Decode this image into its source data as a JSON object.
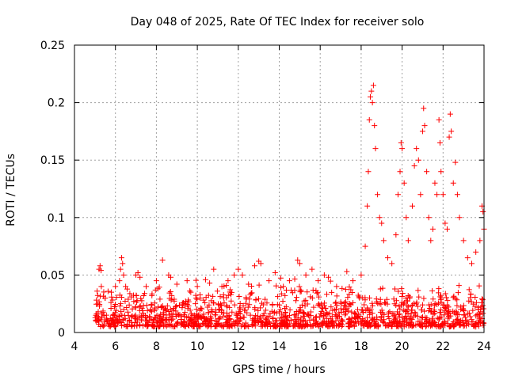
{
  "chart_data": {
    "type": "scatter",
    "title": "Day 048 of 2025, Rate Of TEC Index for receiver solo",
    "xlabel": "GPS time / hours",
    "ylabel": "ROTI / TECUs",
    "xlim": [
      4,
      24
    ],
    "ylim": [
      0,
      0.25
    ],
    "xticks": [
      4,
      6,
      8,
      10,
      12,
      14,
      16,
      18,
      20,
      22,
      24
    ],
    "xtick_labels": [
      "4",
      "6",
      "8",
      "10",
      "12",
      "14",
      "16",
      "18",
      "20",
      "22",
      "24"
    ],
    "yticks": [
      0,
      0.05,
      0.1,
      0.15,
      0.2,
      0.25
    ],
    "ytick_labels": [
      "0",
      "0.05",
      "0.1",
      "0.15",
      "0.2",
      "0.25"
    ],
    "grid": true,
    "marker": "+",
    "color": "#ff0000",
    "series": [
      {
        "name": "ROTI",
        "points": [
          [
            5.2,
            0.055
          ],
          [
            5.25,
            0.058
          ],
          [
            5.3,
            0.054
          ],
          [
            5.5,
            0.03
          ],
          [
            5.8,
            0.035
          ],
          [
            6.0,
            0.04
          ],
          [
            6.2,
            0.045
          ],
          [
            6.25,
            0.055
          ],
          [
            6.3,
            0.065
          ],
          [
            6.35,
            0.06
          ],
          [
            6.4,
            0.05
          ],
          [
            6.5,
            0.04
          ],
          [
            7.0,
            0.05
          ],
          [
            7.1,
            0.052
          ],
          [
            7.2,
            0.048
          ],
          [
            7.5,
            0.04
          ],
          [
            8.0,
            0.045
          ],
          [
            8.3,
            0.063
          ],
          [
            8.6,
            0.05
          ],
          [
            8.7,
            0.048
          ],
          [
            9.0,
            0.042
          ],
          [
            9.5,
            0.045
          ],
          [
            10.0,
            0.04
          ],
          [
            10.4,
            0.046
          ],
          [
            10.6,
            0.043
          ],
          [
            10.8,
            0.055
          ],
          [
            11.2,
            0.04
          ],
          [
            11.5,
            0.045
          ],
          [
            11.8,
            0.05
          ],
          [
            12.0,
            0.055
          ],
          [
            12.2,
            0.05
          ],
          [
            12.5,
            0.042
          ],
          [
            12.8,
            0.058
          ],
          [
            13.0,
            0.062
          ],
          [
            13.1,
            0.06
          ],
          [
            13.5,
            0.045
          ],
          [
            13.8,
            0.052
          ],
          [
            14.2,
            0.04
          ],
          [
            14.5,
            0.045
          ],
          [
            14.9,
            0.063
          ],
          [
            15.0,
            0.06
          ],
          [
            15.3,
            0.05
          ],
          [
            15.6,
            0.055
          ],
          [
            15.9,
            0.045
          ],
          [
            16.2,
            0.05
          ],
          [
            16.4,
            0.048
          ],
          [
            16.8,
            0.04
          ],
          [
            17.3,
            0.053
          ],
          [
            17.6,
            0.045
          ],
          [
            18.0,
            0.05
          ],
          [
            18.2,
            0.075
          ],
          [
            18.3,
            0.11
          ],
          [
            18.35,
            0.14
          ],
          [
            18.4,
            0.185
          ],
          [
            18.45,
            0.205
          ],
          [
            18.5,
            0.21
          ],
          [
            18.55,
            0.2
          ],
          [
            18.6,
            0.215
          ],
          [
            18.65,
            0.18
          ],
          [
            18.7,
            0.16
          ],
          [
            18.8,
            0.12
          ],
          [
            18.9,
            0.1
          ],
          [
            19.0,
            0.095
          ],
          [
            19.1,
            0.08
          ],
          [
            19.3,
            0.065
          ],
          [
            19.5,
            0.06
          ],
          [
            19.7,
            0.085
          ],
          [
            19.8,
            0.12
          ],
          [
            19.9,
            0.14
          ],
          [
            19.95,
            0.165
          ],
          [
            20.0,
            0.16
          ],
          [
            20.1,
            0.13
          ],
          [
            20.2,
            0.1
          ],
          [
            20.3,
            0.08
          ],
          [
            20.5,
            0.11
          ],
          [
            20.6,
            0.145
          ],
          [
            20.7,
            0.16
          ],
          [
            20.8,
            0.15
          ],
          [
            20.9,
            0.12
          ],
          [
            21.0,
            0.175
          ],
          [
            21.05,
            0.195
          ],
          [
            21.1,
            0.18
          ],
          [
            21.2,
            0.14
          ],
          [
            21.3,
            0.1
          ],
          [
            21.4,
            0.08
          ],
          [
            21.5,
            0.09
          ],
          [
            21.6,
            0.13
          ],
          [
            21.7,
            0.12
          ],
          [
            21.8,
            0.185
          ],
          [
            21.85,
            0.165
          ],
          [
            21.9,
            0.14
          ],
          [
            22.0,
            0.12
          ],
          [
            22.1,
            0.095
          ],
          [
            22.2,
            0.09
          ],
          [
            22.3,
            0.17
          ],
          [
            22.35,
            0.19
          ],
          [
            22.4,
            0.175
          ],
          [
            22.5,
            0.13
          ],
          [
            22.6,
            0.148
          ],
          [
            22.7,
            0.12
          ],
          [
            22.8,
            0.1
          ],
          [
            23.0,
            0.08
          ],
          [
            23.2,
            0.065
          ],
          [
            23.4,
            0.06
          ],
          [
            23.6,
            0.07
          ],
          [
            23.8,
            0.08
          ],
          [
            23.9,
            0.11
          ],
          [
            23.95,
            0.105
          ],
          [
            24.0,
            0.09
          ]
        ]
      }
    ]
  }
}
